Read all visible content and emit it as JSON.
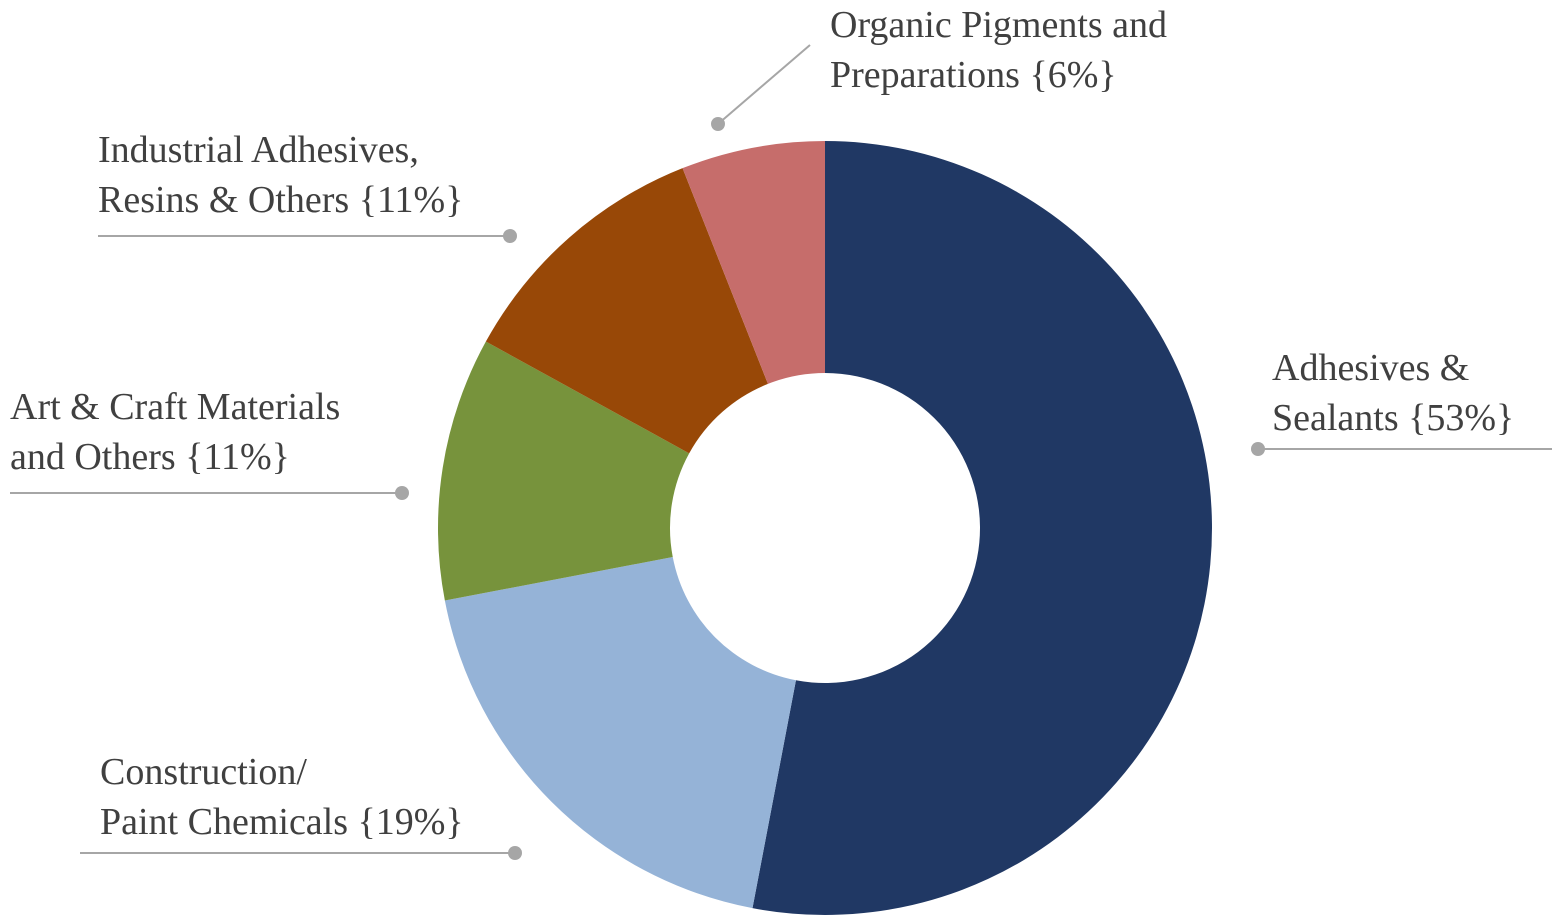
{
  "chart_data": {
    "type": "donut",
    "categories": [
      "Adhesives &\nSealants",
      "Construction/\nPaint Chemicals",
      "Art & Craft Materials\nand Others",
      "Industrial Adhesives,\nResins & Others",
      "Organic Pigments and\nPreparations"
    ],
    "values": [
      53,
      19,
      11,
      11,
      6
    ],
    "value_labels": [
      "{53%}",
      "{19%}",
      "{11%}",
      "{11%}",
      "{6%}"
    ],
    "colors": [
      "#203864",
      "#95b3d7",
      "#77933c",
      "#984807",
      "#c66d6b"
    ]
  }
}
